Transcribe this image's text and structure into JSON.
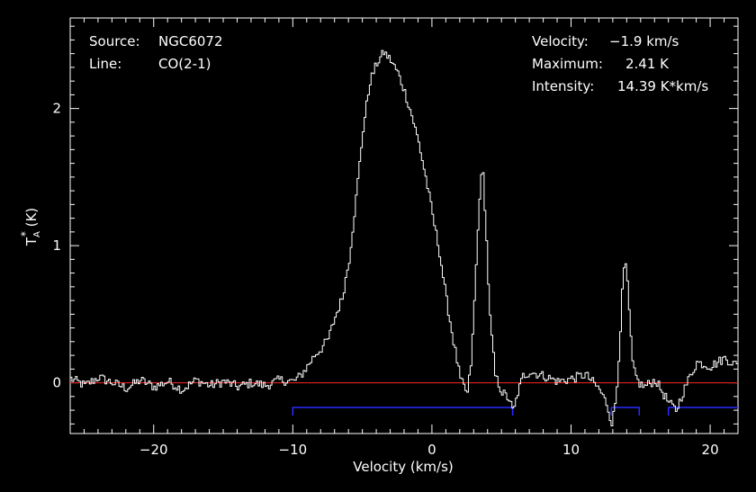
{
  "info": {
    "source_key": "Source:",
    "source_val": "NGC6072",
    "line_key": "Line:",
    "line_val": "CO(2-1)",
    "velocity_key": "Velocity:",
    "velocity_val": "−1.9 km/s",
    "maximum_key": "Maximum:",
    "maximum_val": "2.41 K",
    "intensity_key": "Intensity:",
    "intensity_val": "14.39 K*km/s"
  },
  "chart_data": {
    "type": "line",
    "title": "",
    "xlabel": "Velocity (km/s)",
    "ylabel": "T_A* (K)",
    "xlim": [
      -26,
      22
    ],
    "ylim": [
      -0.37,
      2.66
    ],
    "xticks": [
      -20,
      -10,
      0,
      10,
      20
    ],
    "xtick_labels": [
      "−20",
      "−10",
      "0",
      "10",
      "20"
    ],
    "yticks": [
      0,
      1,
      2
    ],
    "ytick_labels": [
      "0",
      "1",
      "2"
    ],
    "grid": false,
    "colors": {
      "spectrum": "#ffffff",
      "baseline": "#e02020",
      "windows": "#2a2aff",
      "axes": "#ffffff"
    },
    "baseline_value": 0,
    "line_windows": [
      [
        -10.0,
        5.8
      ],
      [
        12.9,
        14.9
      ],
      [
        17.0,
        22.0
      ]
    ],
    "window_level": -0.18,
    "spectrum": {
      "x": [
        -26.0,
        -25.0,
        -24.0,
        -23.0,
        -22.0,
        -21.0,
        -20.0,
        -19.0,
        -18.0,
        -17.0,
        -16.0,
        -15.0,
        -14.0,
        -13.0,
        -12.0,
        -11.0,
        -10.0,
        -9.5,
        -9.0,
        -8.5,
        -8.0,
        -7.5,
        -7.0,
        -6.5,
        -6.0,
        -5.5,
        -5.0,
        -4.5,
        -4.0,
        -3.5,
        -3.0,
        -2.5,
        -2.0,
        -1.5,
        -1.0,
        -0.5,
        0.0,
        0.5,
        1.0,
        1.5,
        2.0,
        2.5,
        2.8,
        3.1,
        3.4,
        3.6,
        3.8,
        4.1,
        4.5,
        5.0,
        5.5,
        5.8,
        6.1,
        6.5,
        7.0,
        8.0,
        9.0,
        10.0,
        11.0,
        12.0,
        12.5,
        12.9,
        13.2,
        13.5,
        13.7,
        13.9,
        14.1,
        14.4,
        14.8,
        15.2,
        16.0,
        17.0,
        17.5,
        18.0,
        18.5,
        19.0,
        20.0,
        21.0,
        22.0
      ],
      "y": [
        0.03,
        -0.02,
        0.04,
        0.0,
        -0.04,
        0.02,
        -0.03,
        0.01,
        -0.05,
        0.02,
        -0.02,
        0.01,
        -0.03,
        0.0,
        -0.02,
        0.02,
        0.01,
        0.05,
        0.12,
        0.2,
        0.25,
        0.32,
        0.48,
        0.62,
        0.9,
        1.35,
        1.85,
        2.2,
        2.33,
        2.41,
        2.35,
        2.26,
        2.12,
        1.95,
        1.75,
        1.5,
        1.22,
        0.95,
        0.6,
        0.3,
        0.02,
        -0.08,
        0.18,
        0.8,
        1.42,
        1.56,
        1.2,
        0.5,
        0.05,
        -0.07,
        -0.12,
        -0.22,
        -0.08,
        0.05,
        0.08,
        0.05,
        0.01,
        0.03,
        0.06,
        -0.05,
        -0.15,
        -0.3,
        -0.1,
        0.4,
        0.8,
        0.87,
        0.55,
        0.1,
        0.0,
        -0.03,
        0.02,
        -0.15,
        -0.2,
        -0.07,
        0.05,
        0.15,
        0.12,
        0.18,
        0.12
      ]
    }
  }
}
